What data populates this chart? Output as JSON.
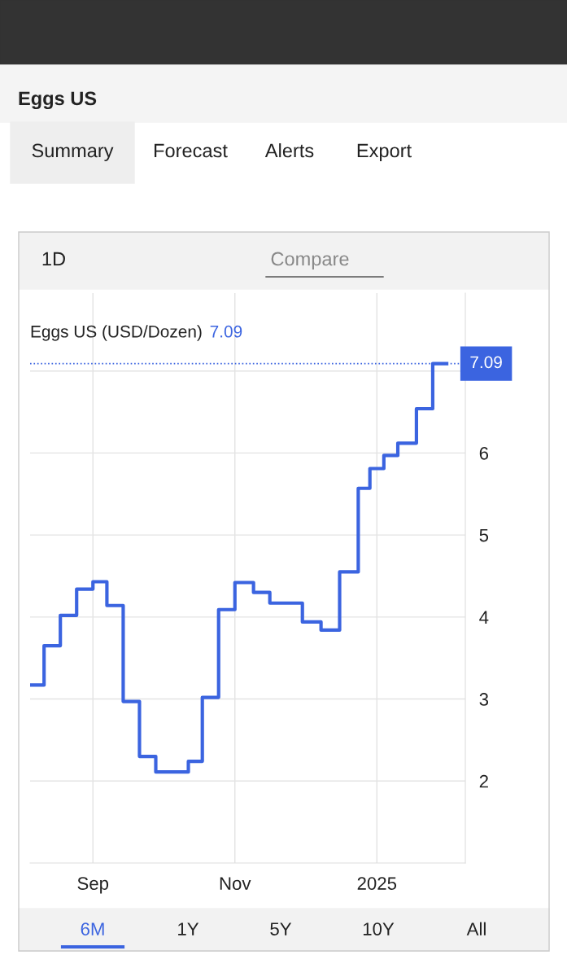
{
  "chart_data": {
    "type": "step",
    "title": "Eggs US",
    "subtitle": "Eggs US (USD/Dozen)",
    "x": [
      "2024-08-05",
      "2024-08-11",
      "2024-08-18",
      "2024-08-25",
      "2024-09-01",
      "2024-09-07",
      "2024-09-14",
      "2024-09-21",
      "2024-09-28",
      "2024-10-12",
      "2024-10-18",
      "2024-10-25",
      "2024-11-01",
      "2024-11-09",
      "2024-11-16",
      "2024-11-30",
      "2024-12-08",
      "2024-12-16",
      "2024-12-24",
      "2024-12-29",
      "2025-01-04",
      "2025-01-10",
      "2025-01-18",
      "2025-01-25",
      "2025-01-31"
    ],
    "series": [
      {
        "color": "#3b64e0",
        "values": [
          3.17,
          3.65,
          4.02,
          4.34,
          4.43,
          4.14,
          2.97,
          2.3,
          2.11,
          2.24,
          3.02,
          4.09,
          4.42,
          4.3,
          4.17,
          3.94,
          3.84,
          4.55,
          5.57,
          5.81,
          5.97,
          6.12,
          6.54,
          7.09,
          7.09
        ]
      }
    ],
    "xlim": [
      "2024-08-05",
      "2025-02-08"
    ],
    "xticks": [
      {
        "value": "2024-09-01",
        "label": "Sep"
      },
      {
        "value": "2024-11-01",
        "label": "Nov"
      },
      {
        "value": "2025-01-01",
        "label": "2025"
      }
    ],
    "ylim": [
      1,
      7.95
    ],
    "yticks": [
      2,
      3,
      4,
      5,
      6,
      {
        "value": 7,
        "label": null
      }
    ],
    "ref_lines": [
      {
        "axis": "y",
        "value": 7.09,
        "label": "7.09",
        "color": "#3b64e0",
        "line_style": "dotted"
      }
    ],
    "grid": true,
    "line_style": "solid",
    "marker": "none",
    "annotations": [
      "7.09",
      "Summary",
      "Forecast",
      "Alerts",
      "Export",
      "1D",
      "Compare",
      "6M",
      "1Y",
      "5Y",
      "10Y",
      "All"
    ]
  }
}
